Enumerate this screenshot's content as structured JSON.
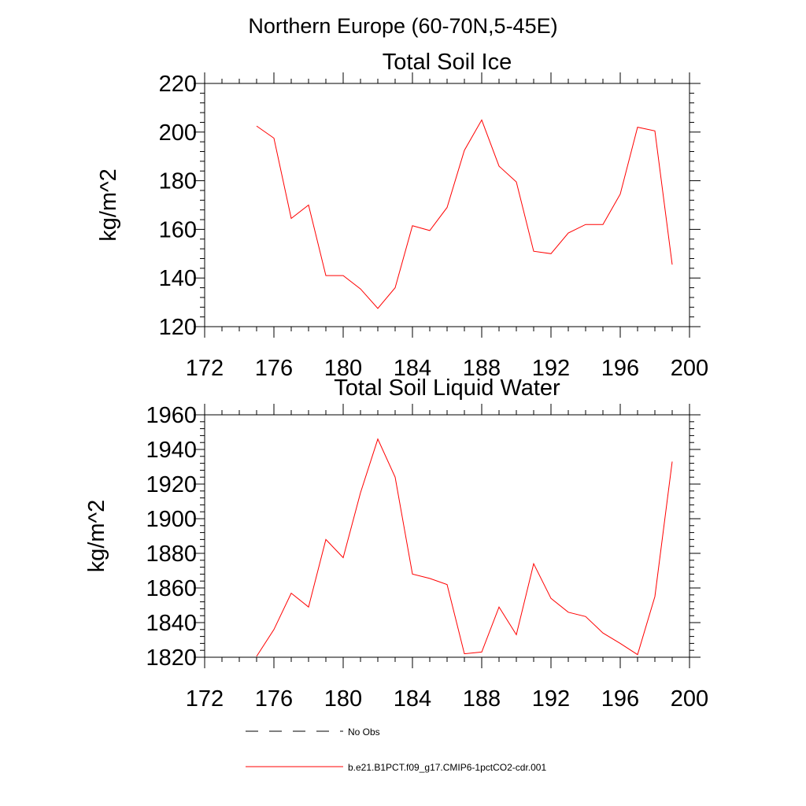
{
  "header": {
    "title": "Northern Europe (60-70N,5-45E)"
  },
  "colors": {
    "series": "#ff0000",
    "no_obs": "#000000"
  },
  "legend": {
    "no_obs_label": "No Obs",
    "run_label": "b.e21.B1PCT.f09_g17.CMIP6-1pctCO2-cdr.001"
  },
  "chart_data": [
    {
      "type": "line",
      "title": "Total Soil Ice",
      "xlabel": "",
      "ylabel": "kg/m^2",
      "xlim": [
        172,
        200
      ],
      "ylim": [
        120,
        220
      ],
      "xticks": [
        172,
        176,
        180,
        184,
        188,
        192,
        196,
        200
      ],
      "yticks": [
        120,
        140,
        160,
        180,
        200,
        220
      ],
      "grid": false,
      "series": [
        {
          "x": [
            175,
            176,
            177,
            178,
            179,
            180,
            181,
            182,
            183,
            184,
            185,
            186,
            187,
            188,
            189,
            190,
            191,
            192,
            193,
            194,
            195,
            196,
            197,
            198,
            199
          ],
          "values": [
            202.5,
            197.5,
            164.5,
            170,
            141,
            141,
            135.5,
            127.5,
            136,
            161.5,
            159.5,
            169,
            192.5,
            205,
            186,
            179.5,
            151,
            150,
            158.5,
            162,
            162,
            174.5,
            202,
            200.5,
            145.5
          ]
        }
      ]
    },
    {
      "type": "line",
      "title": "Total Soil Liquid Water",
      "xlabel": "",
      "ylabel": "kg/m^2",
      "xlim": [
        172,
        200
      ],
      "ylim": [
        1820,
        1960
      ],
      "xticks": [
        172,
        176,
        180,
        184,
        188,
        192,
        196,
        200
      ],
      "yticks": [
        1820,
        1840,
        1860,
        1880,
        1900,
        1920,
        1940,
        1960
      ],
      "grid": false,
      "series": [
        {
          "x": [
            175,
            176,
            177,
            178,
            179,
            180,
            181,
            182,
            183,
            184,
            185,
            186,
            187,
            188,
            189,
            190,
            191,
            192,
            193,
            194,
            195,
            196,
            197,
            198,
            199
          ],
          "values": [
            1820.5,
            1836,
            1857,
            1849,
            1888,
            1877.5,
            1915,
            1946,
            1924,
            1868,
            1865.5,
            1862,
            1822,
            1823,
            1849,
            1833,
            1874,
            1854,
            1846,
            1843.5,
            1834,
            1828,
            1821.5,
            1855,
            1933
          ]
        }
      ]
    }
  ]
}
